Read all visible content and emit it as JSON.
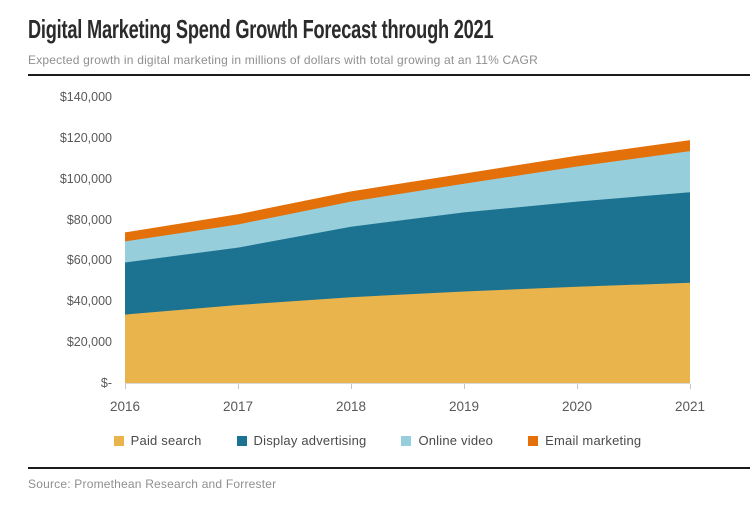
{
  "header": {
    "title": "Digital Marketing Spend Growth Forecast through 2021",
    "subtitle": "Expected growth in digital marketing in millions of dollars with total growing at an 11% CAGR"
  },
  "footer": {
    "source": "Source: Promethean Research and Forrester"
  },
  "chart_data": {
    "type": "area",
    "stacked": true,
    "title": "Digital Marketing Spend Growth Forecast through 2021",
    "subtitle": "Expected growth in digital marketing in millions of dollars with total growing at an 11% CAGR",
    "xlabel": "",
    "ylabel": "",
    "categories": [
      "2016",
      "2017",
      "2018",
      "2019",
      "2020",
      "2021"
    ],
    "series": [
      {
        "name": "Paid search",
        "color": "#E9B44C",
        "values": [
          33500,
          38200,
          42000,
          44800,
          47100,
          49100
        ]
      },
      {
        "name": "Display advertising",
        "color": "#1C7391",
        "values": [
          25500,
          28100,
          34500,
          38700,
          41700,
          44300
        ]
      },
      {
        "name": "Online video",
        "color": "#97CEDC",
        "values": [
          10300,
          11300,
          12300,
          14000,
          17200,
          20100
        ]
      },
      {
        "name": "Email marketing",
        "color": "#E4700A",
        "values": [
          4400,
          5000,
          5000,
          5000,
          5200,
          5400
        ]
      }
    ],
    "stack_totals": [
      73700,
      82600,
      93800,
      102500,
      111200,
      118900
    ],
    "y_ticks": [
      "$140,000",
      "$120,000",
      "$100,000",
      "$80,000",
      "$60,000",
      "$40,000",
      "$20,000",
      "$-"
    ],
    "ylim": [
      0,
      140000
    ],
    "y_tick_step": 20000,
    "grid": false,
    "legend_position": "bottom",
    "axis_line_color": "#D8D8D8",
    "tick_color": "#C6C6C6"
  }
}
